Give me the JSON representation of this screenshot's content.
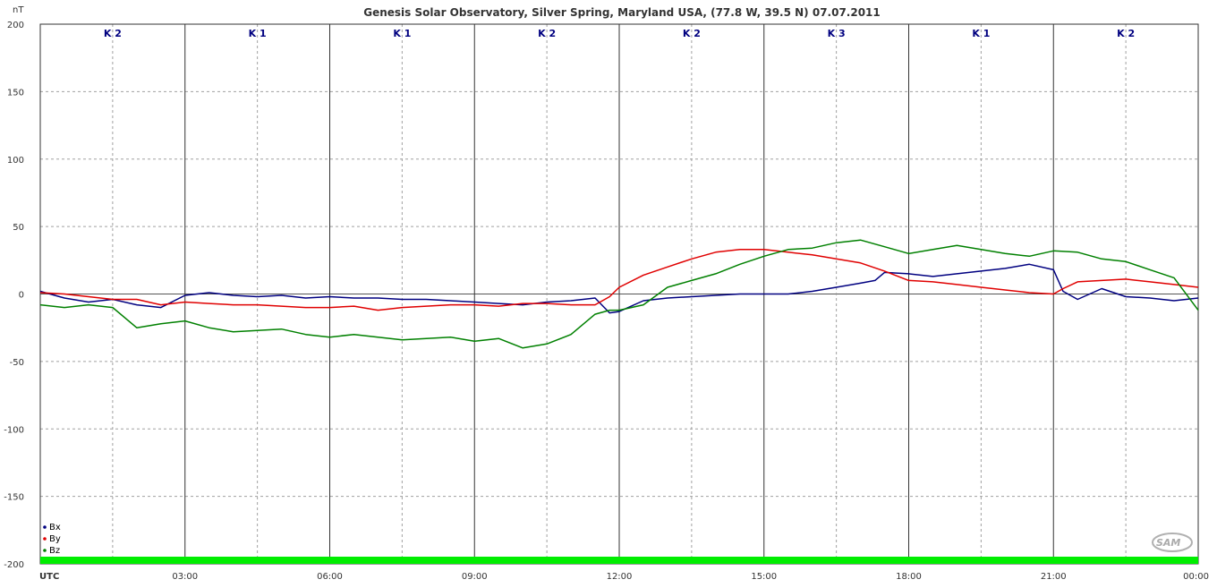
{
  "chart_data": {
    "type": "line",
    "title": "Genesis Solar Observatory, Silver Spring, Maryland USA, (77.8 W, 39.5 N)  07.07.2011",
    "ylabel": "nT",
    "xlabel": "UTC",
    "ylim": [
      -200,
      200
    ],
    "xlim": [
      0,
      24
    ],
    "y_ticks": [
      200,
      150,
      100,
      50,
      0,
      -50,
      -100,
      -150,
      -200
    ],
    "x_ticks": [
      {
        "x": 3,
        "label": "03:00"
      },
      {
        "x": 6,
        "label": "06:00"
      },
      {
        "x": 9,
        "label": "09:00"
      },
      {
        "x": 12,
        "label": "12:00"
      },
      {
        "x": 15,
        "label": "15:00"
      },
      {
        "x": 18,
        "label": "18:00"
      },
      {
        "x": 21,
        "label": "21:00"
      },
      {
        "x": 24,
        "label": "00:00"
      }
    ],
    "grid": true,
    "k_index": [
      {
        "start": 0,
        "end": 3,
        "label": "K 2"
      },
      {
        "start": 3,
        "end": 6,
        "label": "K 1"
      },
      {
        "start": 6,
        "end": 9,
        "label": "K 1"
      },
      {
        "start": 9,
        "end": 12,
        "label": "K 2"
      },
      {
        "start": 12,
        "end": 15,
        "label": "K 2"
      },
      {
        "start": 15,
        "end": 18,
        "label": "K 3"
      },
      {
        "start": 18,
        "end": 21,
        "label": "K 1"
      },
      {
        "start": 21,
        "end": 24,
        "label": "K 2"
      }
    ],
    "legend_position": "bottom-left",
    "series": [
      {
        "name": "Bx",
        "color": "#000080",
        "x": [
          0,
          0.5,
          1,
          1.5,
          2,
          2.5,
          3,
          3.5,
          4,
          4.5,
          5,
          5.5,
          6,
          6.5,
          7,
          7.5,
          8,
          8.5,
          9,
          9.5,
          10,
          10.5,
          11,
          11.5,
          11.8,
          12,
          12.5,
          13,
          13.5,
          14,
          14.5,
          15,
          15.5,
          16,
          16.5,
          17,
          17.3,
          17.5,
          18,
          18.5,
          19,
          19.5,
          20,
          20.5,
          21,
          21.2,
          21.5,
          22,
          22.5,
          23,
          23.5,
          24
        ],
        "y": [
          2,
          -3,
          -6,
          -4,
          -8,
          -10,
          -1,
          1,
          -1,
          -2,
          -1,
          -3,
          -2,
          -3,
          -3,
          -4,
          -4,
          -5,
          -6,
          -7,
          -8,
          -6,
          -5,
          -3,
          -14,
          -13,
          -5,
          -3,
          -2,
          -1,
          0,
          0,
          0,
          2,
          5,
          8,
          10,
          16,
          15,
          13,
          15,
          17,
          19,
          22,
          18,
          2,
          -4,
          4,
          -2,
          -3,
          -5,
          -3
        ]
      },
      {
        "name": "By",
        "color": "#e00000",
        "x": [
          0,
          0.5,
          1,
          1.5,
          2,
          2.5,
          3,
          3.5,
          4,
          4.5,
          5,
          5.5,
          6,
          6.5,
          7,
          7.5,
          8,
          8.5,
          9,
          9.5,
          10,
          10.5,
          11,
          11.5,
          11.8,
          12,
          12.5,
          13,
          13.5,
          14,
          14.5,
          15,
          15.5,
          16,
          16.5,
          17,
          17.5,
          18,
          18.5,
          19,
          19.5,
          20,
          20.5,
          21,
          21.2,
          21.5,
          22,
          22.5,
          23,
          23.5,
          24
        ],
        "y": [
          1,
          0,
          -2,
          -4,
          -4,
          -8,
          -6,
          -7,
          -8,
          -8,
          -9,
          -10,
          -10,
          -9,
          -12,
          -10,
          -9,
          -8,
          -8,
          -9,
          -7,
          -7,
          -8,
          -8,
          -2,
          5,
          14,
          20,
          26,
          31,
          33,
          33,
          31,
          29,
          26,
          23,
          17,
          10,
          9,
          7,
          5,
          3,
          1,
          0,
          4,
          9,
          10,
          11,
          9,
          7,
          5
        ]
      },
      {
        "name": "Bz",
        "color": "#008000",
        "x": [
          0,
          0.5,
          1,
          1.5,
          2,
          2.5,
          3,
          3.5,
          4,
          4.5,
          5,
          5.5,
          6,
          6.5,
          7,
          7.5,
          8,
          8.5,
          9,
          9.5,
          10,
          10.5,
          11,
          11.5,
          11.8,
          12,
          12.5,
          13,
          13.5,
          14,
          14.5,
          15,
          15.5,
          16,
          16.5,
          17,
          17.5,
          18,
          18.5,
          19,
          19.5,
          20,
          20.5,
          21,
          21.5,
          22,
          22.5,
          23,
          23.5,
          24
        ],
        "y": [
          -8,
          -10,
          -8,
          -10,
          -25,
          -22,
          -20,
          -25,
          -28,
          -27,
          -26,
          -30,
          -32,
          -30,
          -32,
          -34,
          -33,
          -32,
          -35,
          -33,
          -40,
          -37,
          -30,
          -15,
          -12,
          -12,
          -8,
          5,
          10,
          15,
          22,
          28,
          33,
          34,
          38,
          40,
          35,
          30,
          33,
          36,
          33,
          30,
          28,
          32,
          31,
          26,
          24,
          18,
          12,
          -12
        ]
      }
    ]
  },
  "legend": {
    "items": [
      {
        "label": "Bx",
        "color": "#000080"
      },
      {
        "label": "By",
        "color": "#e00000"
      },
      {
        "label": "Bz",
        "color": "#008000"
      }
    ]
  },
  "logo": {
    "text": "SAM"
  },
  "status_bar_color": "#00ee00"
}
